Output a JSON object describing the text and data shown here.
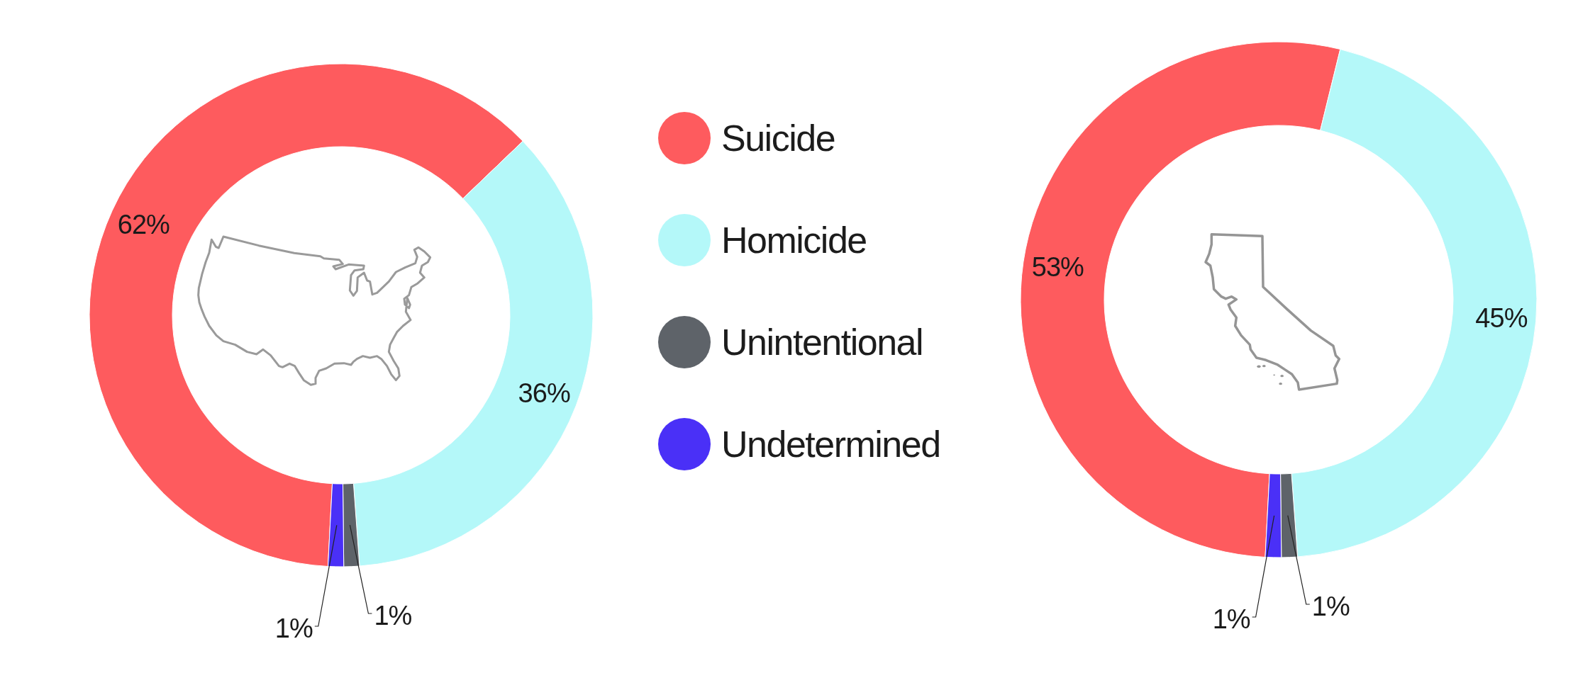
{
  "chart_data": [
    {
      "type": "donut",
      "categories": [
        "Suicide",
        "Homicide",
        "Unintentional",
        "Undetermined"
      ],
      "values": [
        62,
        36,
        1,
        1
      ],
      "colors": [
        "#fe5b5e",
        "#b4f8f9",
        "#5e6369",
        "#4a30f7"
      ],
      "value_labels": [
        "62%",
        "36%",
        "1%",
        "1%"
      ],
      "legend": "right"
    },
    {
      "type": "donut",
      "categories": [
        null,
        null,
        null,
        null
      ],
      "values": [
        53,
        45,
        1,
        1
      ],
      "colors": [
        "#fe5b5e",
        "#b4f8f9",
        "#5e6369",
        "#4a30f7"
      ],
      "value_labels": [
        "53%",
        "45%",
        "1%",
        "1%"
      ]
    }
  ]
}
